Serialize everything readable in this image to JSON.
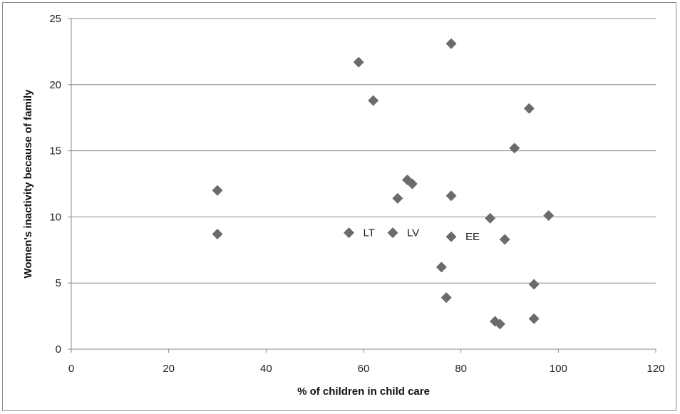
{
  "chart_data": {
    "type": "scatter",
    "xlabel": "% of children in child care",
    "ylabel": "Women's inactivity because of family",
    "xlim": [
      0,
      120
    ],
    "ylim": [
      0,
      25
    ],
    "xticks": [
      "0",
      "20",
      "40",
      "60",
      "80",
      "100",
      "120"
    ],
    "yticks": [
      "0",
      "5",
      "10",
      "15",
      "20",
      "25"
    ],
    "grid": "horizontal",
    "marker": "diamond",
    "marker_color": "#6b6b6b",
    "points": [
      {
        "x": 30,
        "y": 12.0
      },
      {
        "x": 30,
        "y": 8.7
      },
      {
        "x": 57,
        "y": 8.8,
        "label": "LT"
      },
      {
        "x": 59,
        "y": 21.7
      },
      {
        "x": 62,
        "y": 18.8
      },
      {
        "x": 66,
        "y": 8.8,
        "label": "LV"
      },
      {
        "x": 67,
        "y": 11.4
      },
      {
        "x": 69,
        "y": 12.8
      },
      {
        "x": 70,
        "y": 12.5
      },
      {
        "x": 76,
        "y": 6.2
      },
      {
        "x": 77,
        "y": 3.9
      },
      {
        "x": 78,
        "y": 23.1
      },
      {
        "x": 78,
        "y": 11.6
      },
      {
        "x": 78,
        "y": 8.5,
        "label": "EE"
      },
      {
        "x": 86,
        "y": 9.9
      },
      {
        "x": 87,
        "y": 2.1
      },
      {
        "x": 88,
        "y": 1.9
      },
      {
        "x": 89,
        "y": 8.3
      },
      {
        "x": 91,
        "y": 15.2
      },
      {
        "x": 94,
        "y": 18.2
      },
      {
        "x": 95,
        "y": 4.9
      },
      {
        "x": 95,
        "y": 2.3
      },
      {
        "x": 98,
        "y": 10.1
      }
    ]
  }
}
